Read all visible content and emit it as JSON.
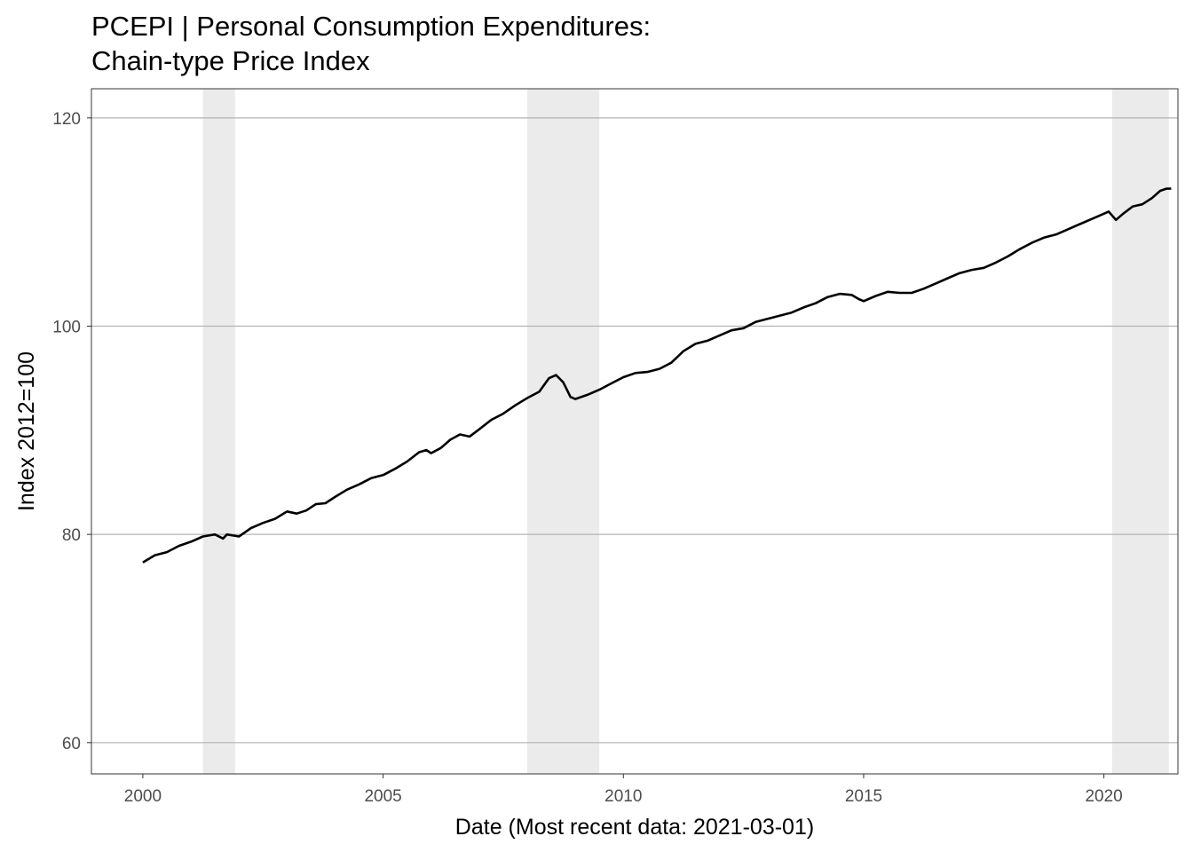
{
  "chart_data": {
    "type": "line",
    "title": "PCEPI | Personal Consumption Expenditures:",
    "subtitle": "Chain-type Price Index",
    "xlabel": "Date (Most recent data: 2021-03-01)",
    "ylabel": "Index 2012=100",
    "xlim": [
      1998.93,
      2021.54
    ],
    "ylim": [
      57.0,
      122.8
    ],
    "x_ticks": [
      {
        "value": 2000,
        "label": "2000"
      },
      {
        "value": 2005,
        "label": "2005"
      },
      {
        "value": 2010,
        "label": "2010"
      },
      {
        "value": 2015,
        "label": "2015"
      },
      {
        "value": 2020,
        "label": "2020"
      }
    ],
    "y_ticks": [
      {
        "value": 60,
        "label": "60"
      },
      {
        "value": 80,
        "label": "80"
      },
      {
        "value": 100,
        "label": "100"
      },
      {
        "value": 120,
        "label": "120"
      }
    ],
    "grid": "horizontal-major",
    "recessions": [
      {
        "start": 2001.25,
        "end": 2001.92
      },
      {
        "start": 2008.0,
        "end": 2009.5
      },
      {
        "start": 2020.17,
        "end": 2021.35
      }
    ],
    "series": [
      {
        "color": "#000000",
        "x": [
          2000.0,
          2000.25,
          2000.5,
          2000.75,
          2001.0,
          2001.25,
          2001.5,
          2001.67,
          2001.75,
          2002.0,
          2002.25,
          2002.5,
          2002.75,
          2003.0,
          2003.2,
          2003.4,
          2003.6,
          2003.8,
          2004.0,
          2004.25,
          2004.5,
          2004.75,
          2005.0,
          2005.25,
          2005.5,
          2005.75,
          2005.9,
          2006.0,
          2006.2,
          2006.4,
          2006.6,
          2006.8,
          2007.0,
          2007.25,
          2007.5,
          2007.75,
          2008.0,
          2008.25,
          2008.45,
          2008.6,
          2008.75,
          2008.9,
          2009.0,
          2009.25,
          2009.5,
          2009.75,
          2010.0,
          2010.25,
          2010.5,
          2010.75,
          2011.0,
          2011.25,
          2011.5,
          2011.75,
          2012.0,
          2012.25,
          2012.5,
          2012.75,
          2013.0,
          2013.25,
          2013.5,
          2013.75,
          2014.0,
          2014.25,
          2014.5,
          2014.75,
          2014.9,
          2015.0,
          2015.25,
          2015.5,
          2015.75,
          2016.0,
          2016.25,
          2016.5,
          2016.75,
          2017.0,
          2017.25,
          2017.5,
          2017.75,
          2018.0,
          2018.25,
          2018.5,
          2018.75,
          2019.0,
          2019.25,
          2019.5,
          2019.75,
          2020.0,
          2020.1,
          2020.25,
          2020.4,
          2020.6,
          2020.8,
          2021.0,
          2021.17,
          2021.3,
          2021.4
        ],
        "y": [
          77.3,
          78.0,
          78.3,
          78.9,
          79.3,
          79.8,
          80.0,
          79.6,
          80.0,
          79.8,
          80.6,
          81.1,
          81.5,
          82.2,
          82.0,
          82.3,
          82.9,
          83.0,
          83.6,
          84.3,
          84.8,
          85.4,
          85.7,
          86.3,
          87.0,
          87.9,
          88.1,
          87.8,
          88.3,
          89.1,
          89.6,
          89.4,
          90.1,
          91.0,
          91.6,
          92.4,
          93.1,
          93.7,
          95.0,
          95.3,
          94.6,
          93.2,
          93.0,
          93.4,
          93.9,
          94.5,
          95.1,
          95.5,
          95.6,
          95.9,
          96.5,
          97.6,
          98.3,
          98.6,
          99.1,
          99.6,
          99.8,
          100.4,
          100.7,
          101.0,
          101.3,
          101.8,
          102.2,
          102.8,
          103.1,
          103.0,
          102.6,
          102.4,
          102.9,
          103.3,
          103.2,
          103.2,
          103.6,
          104.1,
          104.6,
          105.1,
          105.4,
          105.6,
          106.1,
          106.7,
          107.4,
          108.0,
          108.5,
          108.8,
          109.3,
          109.8,
          110.3,
          110.8,
          111.0,
          110.2,
          110.8,
          111.5,
          111.7,
          112.3,
          113.0,
          113.2,
          113.2
        ]
      }
    ]
  }
}
